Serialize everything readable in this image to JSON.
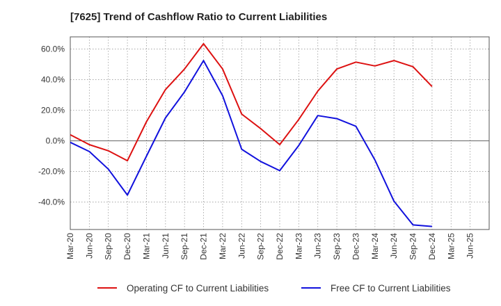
{
  "chart_data": {
    "type": "line",
    "title": "[7625]  Trend of Cashflow Ratio to Current Liabilities",
    "xlabel": "",
    "ylabel": "",
    "ylim": [
      -58,
      68
    ],
    "yticks": [
      -40,
      -20,
      0,
      20,
      40,
      60
    ],
    "ytick_labels": [
      "-40.0%",
      "-20.0%",
      "0.0%",
      "20.0%",
      "40.0%",
      "60.0%"
    ],
    "x_tick_labels": [
      "Mar-20",
      "Jun-20",
      "Sep-20",
      "Dec-20",
      "Mar-21",
      "Jun-21",
      "Sep-21",
      "Dec-21",
      "Mar-22",
      "Jun-22",
      "Sep-22",
      "Dec-22",
      "Mar-23",
      "Jun-23",
      "Sep-23",
      "Dec-23",
      "Mar-24",
      "Jun-24",
      "Sep-24",
      "Dec-24",
      "Mar-25",
      "Jun-25"
    ],
    "grid": true,
    "legend_position": "bottom",
    "series": [
      {
        "name": "Operating CF to Current Liabilities",
        "color": "#dd1111",
        "points": [
          [
            "Mar-20",
            4.0
          ],
          [
            "Jun-20",
            -2.5
          ],
          [
            "Sep-20",
            -6.5
          ],
          [
            "Dec-20",
            -13.0
          ],
          [
            "Mar-21",
            12.5
          ],
          [
            "Jun-21",
            33.5
          ],
          [
            "Sep-21",
            47.0
          ],
          [
            "Dec-21",
            63.5
          ],
          [
            "Mar-22",
            47.0
          ],
          [
            "Jun-22",
            17.5
          ],
          [
            "Sep-22",
            8.0
          ],
          [
            "Dec-22",
            -2.5
          ],
          [
            "Mar-23",
            14.0
          ],
          [
            "Jun-23",
            32.5
          ],
          [
            "Sep-23",
            47.0
          ],
          [
            "Dec-23",
            51.5
          ],
          [
            "Mar-24",
            49.0
          ],
          [
            "Jun-24",
            52.5
          ],
          [
            "Sep-24",
            48.5
          ],
          [
            "Dec-24",
            35.5
          ]
        ]
      },
      {
        "name": "Free CF to Current Liabilities",
        "color": "#1111dd",
        "points": [
          [
            "Mar-20",
            -1.0
          ],
          [
            "Jun-20",
            -7.0
          ],
          [
            "Sep-20",
            -18.5
          ],
          [
            "Dec-20",
            -35.5
          ],
          [
            "Mar-21",
            -10.0
          ],
          [
            "Jun-21",
            15.0
          ],
          [
            "Sep-21",
            32.0
          ],
          [
            "Dec-21",
            52.5
          ],
          [
            "Mar-22",
            29.5
          ],
          [
            "Jun-22",
            -5.5
          ],
          [
            "Sep-22",
            -13.5
          ],
          [
            "Dec-22",
            -19.5
          ],
          [
            "Mar-23",
            -3.0
          ],
          [
            "Jun-23",
            16.5
          ],
          [
            "Sep-23",
            14.5
          ],
          [
            "Dec-23",
            9.5
          ],
          [
            "Mar-24",
            -12.5
          ],
          [
            "Jun-24",
            -39.5
          ],
          [
            "Sep-24",
            -55.0
          ],
          [
            "Dec-24",
            -56.0
          ]
        ]
      }
    ]
  }
}
